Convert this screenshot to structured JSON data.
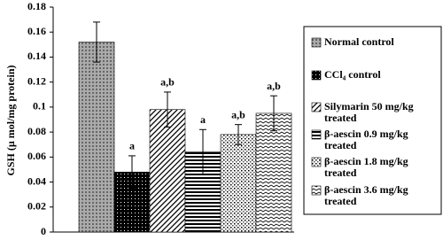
{
  "chart_data": {
    "type": "bar",
    "y_label": "GSH (µ mol/mg protein)",
    "categories": [
      "Normal control",
      "CCl₄ control",
      "Silymarin 50 mg/kg treated",
      "β-aescin 0.9 mg/kg treated",
      "β-aescin 1.8 mg/kg treated",
      "β-aescin 3.6 mg/kg treated"
    ],
    "values": [
      0.152,
      0.048,
      0.098,
      0.064,
      0.078,
      0.095
    ],
    "errors": [
      0.016,
      0.013,
      0.014,
      0.018,
      0.008,
      0.014
    ],
    "annotations": [
      null,
      "a",
      "a,b",
      "a",
      "a,b",
      "a,b"
    ],
    "ylim": [
      0,
      0.18
    ],
    "yticks": [
      0,
      0.02,
      0.04,
      0.06,
      0.08,
      0.1,
      0.12,
      0.14,
      0.16,
      0.18
    ],
    "grid": false
  }
}
